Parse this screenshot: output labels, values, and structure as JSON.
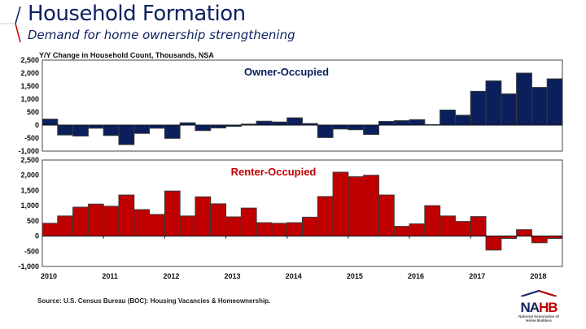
{
  "header": {
    "title": "Household Formation",
    "subtitle": "Demand for home ownership strengthening"
  },
  "footer": {
    "source": "Source: U.S. Census Bureau (BOC): Housing Vacancies & Homeownership."
  },
  "logo": {
    "name": "NAHB",
    "full_name": "National Association of Home Builders"
  },
  "colors": {
    "owner": "#0a1f5c",
    "renter": "#c00000",
    "title": "#0d2160",
    "bar_border": "#3a3a3a"
  },
  "chart_data": [
    {
      "type": "bar",
      "title": "Owner-Occupied",
      "ylabel": "Y/Y Change in Household Count, Thousands, NSA",
      "ylim": [
        -1000,
        2500
      ],
      "yticks": [
        "2,500",
        "2,000",
        "1,500",
        "1,000",
        "500",
        "0",
        "-500",
        "-1,000"
      ],
      "ytick_values": [
        2500,
        2000,
        1500,
        1000,
        500,
        0,
        -500,
        -1000
      ],
      "frequency": "quarterly",
      "start": "2010 Q1",
      "values": [
        230,
        -380,
        -420,
        -120,
        -400,
        -750,
        -320,
        -120,
        -510,
        90,
        -210,
        -110,
        -50,
        40,
        150,
        120,
        280,
        60,
        -480,
        -150,
        -180,
        -360,
        140,
        170,
        210,
        20,
        580,
        380,
        1300,
        1700,
        1200,
        2000,
        1450,
        1780
      ],
      "grid": false
    },
    {
      "type": "bar",
      "title": "Renter-Occupied",
      "ylim": [
        -1000,
        2500
      ],
      "yticks": [
        "2,500",
        "2,000",
        "1,500",
        "1,000",
        "500",
        "0",
        "-500",
        "-1,000"
      ],
      "ytick_values": [
        2500,
        2000,
        1500,
        1000,
        500,
        0,
        -500,
        -1000
      ],
      "xticks": [
        "2010",
        "2011",
        "2012",
        "2013",
        "2014",
        "2015",
        "2016",
        "2017",
        "2018"
      ],
      "frequency": "quarterly",
      "start": "2010 Q1",
      "values": [
        420,
        660,
        950,
        1050,
        980,
        1350,
        870,
        710,
        1480,
        660,
        1290,
        1060,
        630,
        920,
        440,
        420,
        440,
        620,
        1300,
        2100,
        1950,
        2000,
        1350,
        320,
        400,
        1000,
        660,
        480,
        640,
        -460,
        -80,
        210,
        -220,
        -80
      ],
      "grid": false
    }
  ]
}
